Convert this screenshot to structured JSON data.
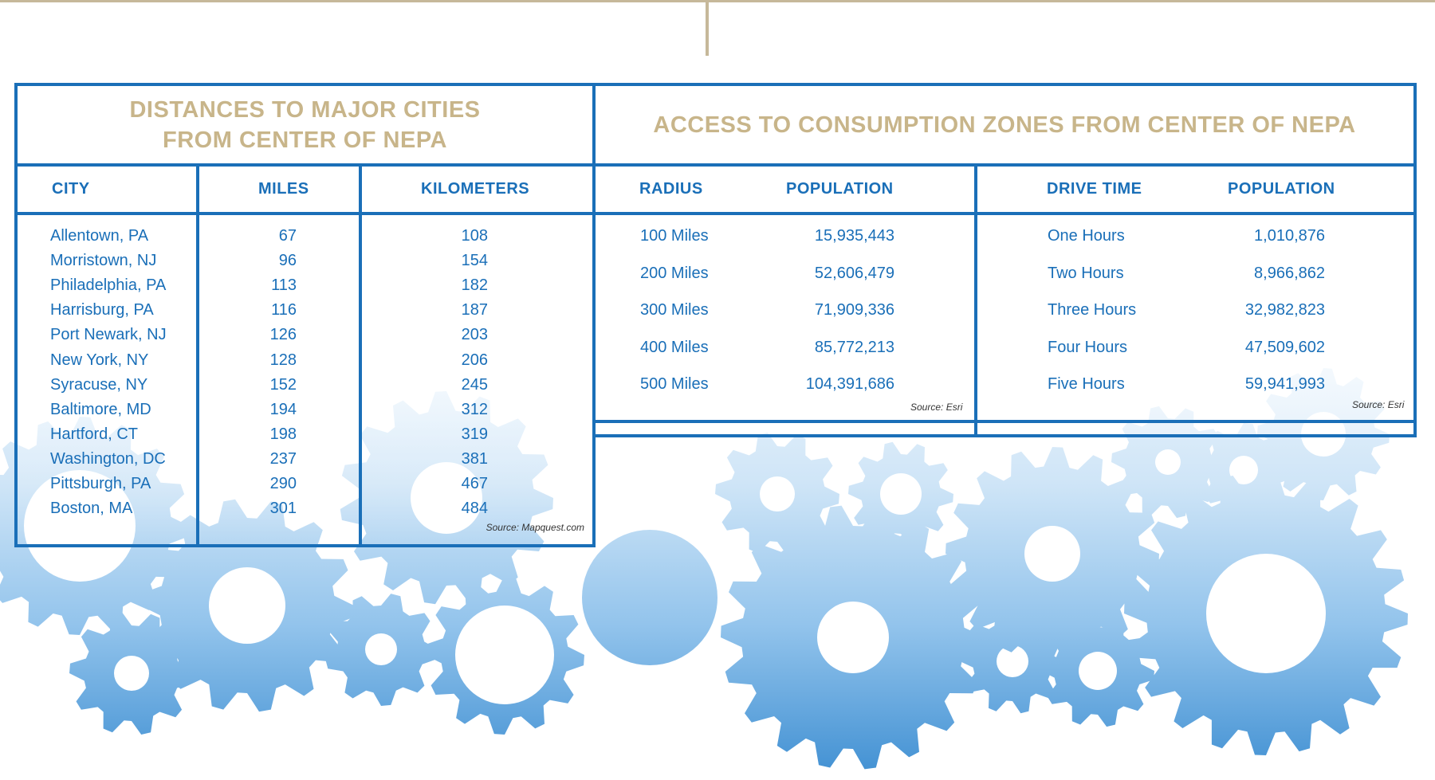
{
  "distances": {
    "title_line1": "DISTANCES TO MAJOR CITIES",
    "title_line2": "FROM CENTER OF NEPA",
    "headers": {
      "city": "CITY",
      "miles": "MILES",
      "kilometers": "KILOMETERS"
    },
    "rows": [
      {
        "city": "Allentown, PA",
        "miles": "67",
        "km": "108"
      },
      {
        "city": "Morristown, NJ",
        "miles": "96",
        "km": "154"
      },
      {
        "city": "Philadelphia, PA",
        "miles": "113",
        "km": "182"
      },
      {
        "city": "Harrisburg, PA",
        "miles": "116",
        "km": "187"
      },
      {
        "city": "Port Newark, NJ",
        "miles": "126",
        "km": "203"
      },
      {
        "city": "New York, NY",
        "miles": "128",
        "km": "206"
      },
      {
        "city": "Syracuse, NY",
        "miles": "152",
        "km": "245"
      },
      {
        "city": "Baltimore, MD",
        "miles": "194",
        "km": "312"
      },
      {
        "city": "Hartford, CT",
        "miles": "198",
        "km": "319"
      },
      {
        "city": "Washington, DC",
        "miles": "237",
        "km": "381"
      },
      {
        "city": "Pittsburgh, PA",
        "miles": "290",
        "km": "467"
      },
      {
        "city": "Boston, MA",
        "miles": "301",
        "km": "484"
      }
    ],
    "source": "Source: Mapquest.com"
  },
  "access": {
    "title": "ACCESS TO CONSUMPTION ZONES FROM CENTER OF NEPA",
    "radius": {
      "headers": {
        "radius": "RADIUS",
        "population": "POPULATION"
      },
      "rows": [
        {
          "label": "100 Miles",
          "population": "15,935,443"
        },
        {
          "label": "200 Miles",
          "population": "52,606,479"
        },
        {
          "label": "300 Miles",
          "population": "71,909,336"
        },
        {
          "label": "400 Miles",
          "population": "85,772,213"
        },
        {
          "label": "500 Miles",
          "population": "104,391,686"
        }
      ],
      "source": "Source: Esri"
    },
    "drive": {
      "headers": {
        "drive_time": "DRIVE TIME",
        "population": "POPULATION"
      },
      "rows": [
        {
          "label": "One Hours",
          "population": "1,010,876"
        },
        {
          "label": "Two Hours",
          "population": "8,966,862"
        },
        {
          "label": "Three Hours",
          "population": "32,982,823"
        },
        {
          "label": "Four Hours",
          "population": "47,509,602"
        },
        {
          "label": "Five Hours",
          "population": "59,941,993"
        }
      ],
      "source": "Source: Esri"
    }
  },
  "colors": {
    "blue": "#1a6fb8",
    "gold": "#c8b58a",
    "gear_light": "#e6f2fb",
    "gear_mid": "#9ccaef",
    "gear_dark": "#4b9ad8"
  }
}
